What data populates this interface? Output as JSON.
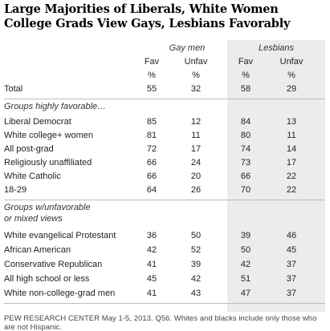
{
  "chart_data": {
    "type": "table",
    "title_lines": [
      "Large Majorities of Liberals, White Women",
      "College Grads View Gays, Lesbians Favorably"
    ],
    "column_groups": [
      "Gay men",
      "Lesbians"
    ],
    "columns": [
      "Fav",
      "Unfav",
      "Fav",
      "Unfav"
    ],
    "percent_sign": "%",
    "total": {
      "label": "Total",
      "values": [
        55,
        32,
        58,
        29
      ]
    },
    "sections": [
      {
        "heading": "Groups highly favorable…",
        "rows": [
          {
            "label": "Liberal Democrat",
            "values": [
              85,
              12,
              84,
              13
            ]
          },
          {
            "label": "White college+ women",
            "values": [
              81,
              11,
              80,
              11
            ]
          },
          {
            "label": "All post-grad",
            "values": [
              72,
              17,
              74,
              14
            ]
          },
          {
            "label": "Religiously unaffiliated",
            "values": [
              66,
              24,
              73,
              17
            ]
          },
          {
            "label": "White Catholic",
            "values": [
              66,
              20,
              66,
              22
            ]
          },
          {
            "label": "18-29",
            "values": [
              64,
              26,
              70,
              22
            ]
          }
        ]
      },
      {
        "heading_lines": [
          "Groups w/unfavorable",
          "or mixed views"
        ],
        "rows": [
          {
            "label": "White evangelical Protestant",
            "values": [
              36,
              50,
              39,
              46
            ]
          },
          {
            "label": "African American",
            "values": [
              42,
              52,
              50,
              45
            ]
          },
          {
            "label": "Conservative Republican",
            "values": [
              41,
              39,
              42,
              37
            ]
          },
          {
            "label": "All high school or less",
            "values": [
              45,
              42,
              51,
              37
            ]
          },
          {
            "label": "White non-college-grad men",
            "values": [
              41,
              43,
              47,
              37
            ]
          }
        ]
      }
    ],
    "note": "PEW RESEARCH CENTER May 1-5, 2013. Q56. Whites and blacks include only those who are not Hispanic.",
    "colors": {
      "lesbians_column_shade": "#ececec",
      "separator": "#bcbcbc",
      "text": "#222222"
    }
  }
}
